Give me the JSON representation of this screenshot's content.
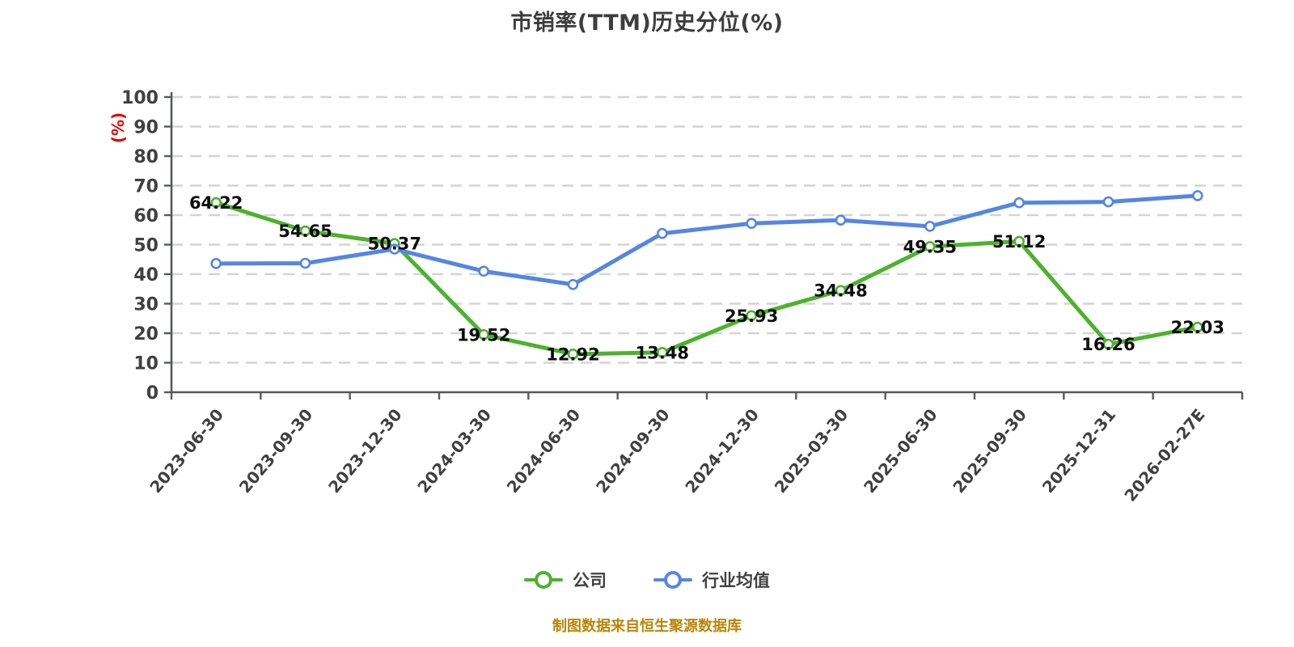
{
  "title": "市销率(TTM)历史分位(%)",
  "footer": "制图数据来自恒生聚源数据库",
  "style": {
    "background": "#ffffff",
    "title_color": "#3d3d3d",
    "grid_color": "#d4d4d4",
    "axis_color": "#58595b",
    "tick_label_color": "#404040",
    "data_label_color": "#0d0d0d",
    "footer_color": "#b8860b",
    "legend_text_color": "#404040"
  },
  "chart_data": {
    "type": "line",
    "title": "市销率(TTM)历史分位(%)",
    "xlabel": "",
    "ylabel": "(%)",
    "ylabel_color": "#e60000",
    "ylim": [
      0,
      100
    ],
    "ytick_step": 10,
    "grid": "dashed horizontal gridlines",
    "legend_position": "bottom",
    "categories": [
      "2023-06-30",
      "2023-09-30",
      "2023-12-30",
      "2024-03-30",
      "2024-06-30",
      "2024-09-30",
      "2024-12-30",
      "2025-03-30",
      "2025-06-30",
      "2025-09-30",
      "2025-12-31",
      "2026-02-27E"
    ],
    "series": [
      {
        "name": "公司",
        "color": "#4cb22c",
        "marker": "circle-white-fill",
        "data_labels": true,
        "values": [
          64.22,
          54.65,
          50.37,
          19.52,
          12.92,
          13.48,
          25.93,
          34.48,
          49.35,
          51.12,
          16.26,
          22.03
        ]
      },
      {
        "name": "行业均值",
        "color": "#5585e5",
        "marker": "circle-white-fill",
        "data_labels": false,
        "values": [
          43.6,
          43.7,
          48.5,
          41.0,
          36.5,
          53.8,
          57.2,
          58.3,
          56.2,
          64.2,
          64.5,
          66.6
        ]
      }
    ]
  }
}
